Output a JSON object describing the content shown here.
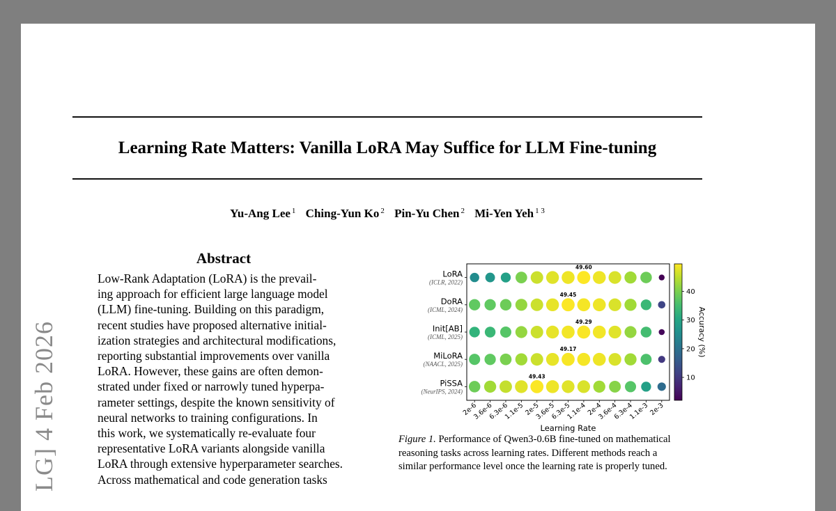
{
  "paper": {
    "title": "Learning Rate Matters: Vanilla LoRA May Suffice for LLM Fine-tuning",
    "authors": [
      {
        "name": "Yu-Ang Lee",
        "affil": "1"
      },
      {
        "name": "Ching-Yun Ko",
        "affil": "2"
      },
      {
        "name": "Pin-Yu Chen",
        "affil": "2"
      },
      {
        "name": "Mi-Yen Yeh",
        "affil": "1 3"
      }
    ],
    "abstract_heading": "Abstract",
    "abstract_lines": [
      "Low-Rank Adaptation (LoRA) is the prevail-",
      "ing approach for efficient large language model",
      "(LLM) fine-tuning.  Building on this paradigm,",
      "recent studies have proposed alternative initial-",
      "ization strategies and architectural modifications,",
      "reporting substantial improvements over vanilla",
      "LoRA. However, these gains are often demon-",
      "strated under fixed or narrowly tuned hyperpa-",
      "rameter settings, despite the known sensitivity of",
      "neural networks to training configurations.  In",
      "this work,  we systematically re-evaluate four",
      "representative LoRA variants alongside vanilla",
      "LoRA through extensive hyperparameter searches.",
      "Across mathematical and code generation tasks"
    ],
    "arxiv_stamp": "LG]  4 Feb 2026",
    "figure_label": "Figure 1.",
    "caption_lines": [
      "Performance of Qwen3-0.6B fine-tuned on mathematical",
      "reasoning tasks across learning rates. Different methods reach a",
      "similar performance level once the learning rate is properly tuned."
    ]
  },
  "chart_data": {
    "type": "bubble-heatmap",
    "xlabel": "Learning Rate",
    "colorbar_label": "Accuracy (%)",
    "colorbar_ticks": [
      10,
      20,
      30,
      40
    ],
    "colorbar_range": [
      2,
      49.6
    ],
    "colormap": "viridis",
    "x": [
      "2e-6",
      "3.6e-6",
      "6.3e-6",
      "1.1e-5",
      "2e-5",
      "3.6e-5",
      "6.3e-5",
      "1.1e-4",
      "2e-4",
      "3.6e-4",
      "6.3e-4",
      "1.1e-3",
      "2e-3"
    ],
    "series": [
      {
        "name": "LoRA",
        "venue": "(ICLR, 2022)",
        "best_label": "49.60",
        "best_index": 7,
        "values": [
          25,
          27,
          29,
          40,
          46,
          47.5,
          48.5,
          49.6,
          48.5,
          47,
          43,
          39,
          2
        ]
      },
      {
        "name": "DoRA",
        "venue": "(ICML, 2024)",
        "best_label": "49.45",
        "best_index": 6,
        "values": [
          38,
          38,
          39,
          42,
          46,
          48,
          49.45,
          49,
          48.5,
          47,
          43,
          34,
          12
        ]
      },
      {
        "name": "Init[AB]",
        "venue": "(ICML, 2025)",
        "best_label": "49.29",
        "best_index": 7,
        "values": [
          33,
          34,
          37,
          42,
          46,
          48,
          48.8,
          49.29,
          48.8,
          47.5,
          42,
          35,
          3
        ]
      },
      {
        "name": "MiLoRA",
        "venue": "(NAACL, 2025)",
        "best_label": "49.17",
        "best_index": 6,
        "values": [
          37,
          38,
          40,
          43,
          46,
          48,
          49.17,
          49,
          48.5,
          47,
          43,
          36,
          10
        ]
      },
      {
        "name": "PiSSA",
        "venue": "(NeurIPS, 2024)",
        "best_label": "49.43",
        "best_index": 4,
        "values": [
          39,
          43,
          45.5,
          47.5,
          49.43,
          48.5,
          47.5,
          47,
          43,
          41,
          37,
          29,
          19
        ]
      }
    ]
  }
}
